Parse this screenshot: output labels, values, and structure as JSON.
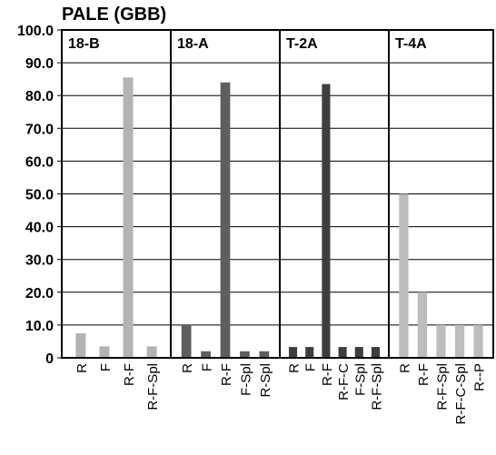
{
  "chart_data": {
    "type": "bar",
    "title": "PALE (GBB)",
    "ylim": [
      0,
      100
    ],
    "yticks": [
      0,
      10,
      20,
      30,
      40,
      50,
      60,
      70,
      80,
      90,
      100
    ],
    "ytick_labels": [
      "0",
      "10.0",
      "20.0",
      "30.0",
      "40.0",
      "50.0",
      "60.0",
      "70.0",
      "80.0",
      "90.0",
      "100.0"
    ],
    "grid": true,
    "panels": [
      {
        "label": "18-B",
        "color": "#b3b3b3",
        "categories": [
          "R",
          "F",
          "R-F",
          "R-F-Spl"
        ],
        "values": [
          7.5,
          3.5,
          85.5,
          3.5
        ]
      },
      {
        "label": "18-A",
        "color": "#5e5e5e",
        "categories": [
          "R",
          "F",
          "R-F",
          "F-Spl",
          "R-Spl"
        ],
        "values": [
          10,
          2,
          84,
          2,
          2
        ]
      },
      {
        "label": "T-2A",
        "color": "#3e3e3e",
        "categories": [
          "R",
          "F",
          "R-F",
          "R-F-C",
          "F-Spl",
          "R-F-Spl"
        ],
        "values": [
          3.3,
          3.3,
          83.5,
          3.3,
          3.3,
          3.3
        ]
      },
      {
        "label": "T-4A",
        "color": "#bdbdbd",
        "categories": [
          "R",
          "R-F",
          "R-F-Spl",
          "R-F-C-Spl",
          "R--P"
        ],
        "values": [
          50,
          20,
          10,
          10,
          10
        ]
      }
    ]
  }
}
